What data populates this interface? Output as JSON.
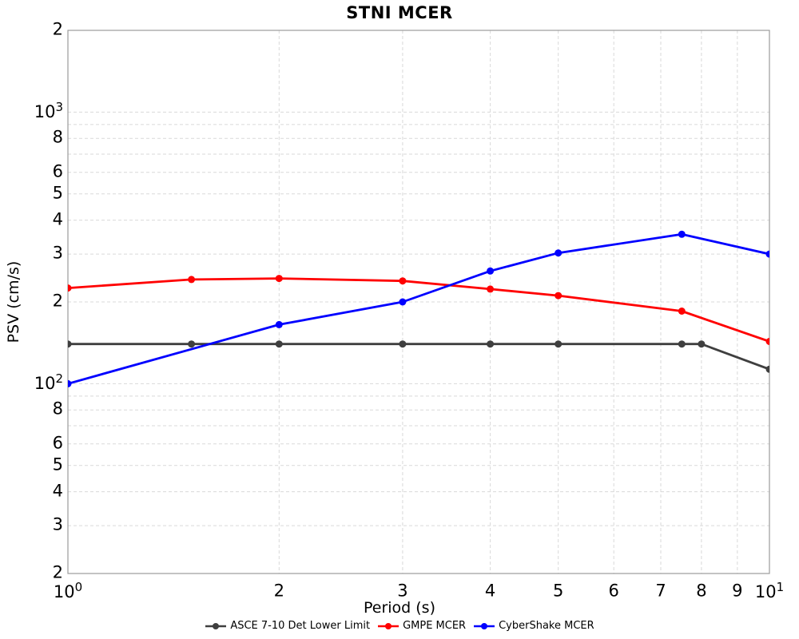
{
  "chart_data": {
    "type": "line",
    "title": "STNI MCER",
    "xlabel": "Period (s)",
    "ylabel": "PSV (cm/s)",
    "xscale": "log",
    "yscale": "log",
    "xlim": [
      1,
      10
    ],
    "ylim": [
      20,
      2000
    ],
    "grid": true,
    "legend_position": "bottom-center",
    "x_ticks": [
      {
        "v": 1,
        "base": "10",
        "exp": "0"
      },
      {
        "v": 2,
        "t": "2"
      },
      {
        "v": 3,
        "t": "3"
      },
      {
        "v": 4,
        "t": "4"
      },
      {
        "v": 5,
        "t": "5"
      },
      {
        "v": 6,
        "t": "6"
      },
      {
        "v": 7,
        "t": "7"
      },
      {
        "v": 8,
        "t": "8"
      },
      {
        "v": 9,
        "t": "9"
      },
      {
        "v": 10,
        "base": "10",
        "exp": "1"
      }
    ],
    "y_ticks": [
      {
        "v": 2000,
        "t": "2"
      },
      {
        "v": 1000,
        "base": "10",
        "exp": "3"
      },
      {
        "v": 800,
        "t": "8"
      },
      {
        "v": 600,
        "t": "6"
      },
      {
        "v": 500,
        "t": "5"
      },
      {
        "v": 400,
        "t": "4"
      },
      {
        "v": 300,
        "t": "3"
      },
      {
        "v": 200,
        "t": "2"
      },
      {
        "v": 100,
        "base": "10",
        "exp": "2"
      },
      {
        "v": 80,
        "t": "8"
      },
      {
        "v": 60,
        "t": "6"
      },
      {
        "v": 50,
        "t": "5"
      },
      {
        "v": 40,
        "t": "4"
      },
      {
        "v": 30,
        "t": "3"
      },
      {
        "v": 20,
        "t": "2"
      }
    ],
    "x_gridlines": [
      2,
      3,
      4,
      5,
      6,
      7,
      8,
      9
    ],
    "y_gridlines": [
      30,
      40,
      50,
      60,
      70,
      80,
      90,
      100,
      200,
      300,
      400,
      500,
      600,
      700,
      800,
      900,
      1000
    ],
    "series": [
      {
        "name": "ASCE 7-10 Det Lower Limit",
        "color": "#3f3f3f",
        "x": [
          1,
          1.5,
          2,
          3,
          4,
          5,
          7.5,
          8,
          10
        ],
        "y": [
          140,
          140,
          140,
          140,
          140,
          140,
          140,
          140,
          113
        ]
      },
      {
        "name": "GMPE MCER",
        "color": "#ff0000",
        "x": [
          1,
          1.5,
          2,
          3,
          4,
          5,
          7.5,
          10
        ],
        "y": [
          225,
          242,
          244,
          239,
          223,
          211,
          185,
          143
        ]
      },
      {
        "name": "CyberShake MCER",
        "color": "#0000ff",
        "x": [
          1,
          2,
          3,
          4,
          5,
          7.5,
          10
        ],
        "y": [
          100,
          165,
          200,
          260,
          303,
          355,
          300
        ]
      }
    ]
  },
  "colors": {
    "grid": "#d9d9d9",
    "axis_border": "#9b9b9b",
    "text": "#000000"
  }
}
